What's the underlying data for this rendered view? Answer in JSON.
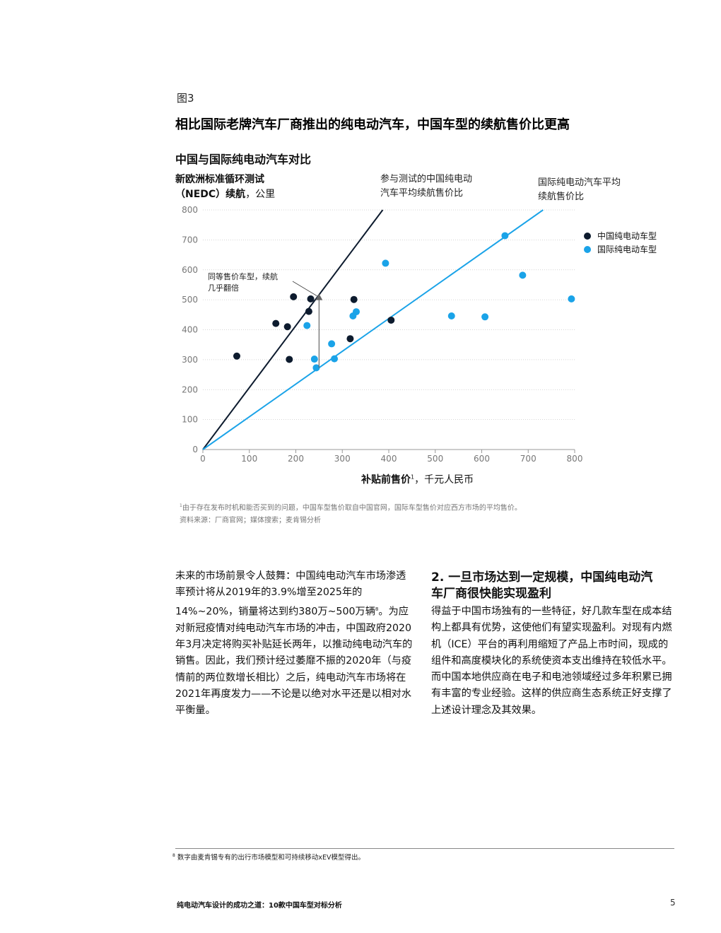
{
  "figure": {
    "label": "图3",
    "title": "相比国际老牌汽车厂商推出的纯电动汽车，中国车型的续航售价比更高"
  },
  "chart_data": {
    "type": "scatter",
    "title": "中国与国际纯电动汽车对比",
    "ylabel_bold": "新欧洲标准循环测试",
    "ylabel_rest_bold": "（NEDC）续航",
    "ylabel_rest_plain": "，公里",
    "xlabel_bold": "补贴前售价",
    "xlabel_sup": "1",
    "xlabel_plain": "，千元人民币",
    "xlim": [
      0,
      800
    ],
    "ylim": [
      0,
      800
    ],
    "xticks": [
      "0",
      "100",
      "200",
      "300",
      "400",
      "500",
      "600",
      "700",
      "800"
    ],
    "yticks": [
      "0",
      "100",
      "200",
      "300",
      "400",
      "500",
      "600",
      "700",
      "800"
    ],
    "x_tick_values": [
      0,
      100,
      200,
      300,
      400,
      500,
      600,
      700,
      800
    ],
    "y_tick_values": [
      0,
      100,
      200,
      300,
      400,
      500,
      600,
      700,
      800
    ],
    "legend_position": "right",
    "series": [
      {
        "name": "中国纯电动车型",
        "color": "#0d1b2e",
        "points": [
          {
            "x": 73,
            "y": 312
          },
          {
            "x": 157,
            "y": 421
          },
          {
            "x": 182,
            "y": 410
          },
          {
            "x": 195,
            "y": 510
          },
          {
            "x": 186,
            "y": 301
          },
          {
            "x": 228,
            "y": 461
          },
          {
            "x": 232,
            "y": 503
          },
          {
            "x": 325,
            "y": 501
          },
          {
            "x": 317,
            "y": 370
          },
          {
            "x": 405,
            "y": 432
          }
        ]
      },
      {
        "name": "国际纯电动车型",
        "color": "#1aa3e8",
        "points": [
          {
            "x": 224,
            "y": 414
          },
          {
            "x": 240,
            "y": 302
          },
          {
            "x": 244,
            "y": 273
          },
          {
            "x": 277,
            "y": 353
          },
          {
            "x": 283,
            "y": 303
          },
          {
            "x": 323,
            "y": 446
          },
          {
            "x": 330,
            "y": 460
          },
          {
            "x": 393,
            "y": 622
          },
          {
            "x": 535,
            "y": 446
          },
          {
            "x": 607,
            "y": 443
          },
          {
            "x": 650,
            "y": 714
          },
          {
            "x": 688,
            "y": 582
          },
          {
            "x": 793,
            "y": 503
          }
        ]
      }
    ],
    "trend_lines": [
      {
        "color": "#0d1b2e",
        "x1": 0,
        "y1": 0,
        "x2": 387,
        "y2": 800
      },
      {
        "color": "#1aa3e8",
        "x1": 0,
        "y1": 0,
        "x2": 732,
        "y2": 800
      }
    ],
    "arrow": {
      "x": 250,
      "y_from": 273,
      "y_to": 520
    },
    "annotations": {
      "cn_line": [
        "参与测试的中国纯电动",
        "汽车平均续航售价比"
      ],
      "intl_line": [
        "国际纯电动汽车平均",
        "续航售价比"
      ],
      "double": [
        "同等售价车型，续航",
        "几乎翻倍"
      ]
    }
  },
  "chart_note": {
    "footnote_sup": "1",
    "footnote": "由于存在发布时机和能否买到的问题，中国车型售价取自中国官网，国际车型售价对应西方市场的平均售价。",
    "source": "资料来源：厂商官网；媒体搜索；麦肯锡分析"
  },
  "body": {
    "left_part1": "未来的市场前景令人鼓舞：中国纯电动汽车市场渗透率预计将从2019年的3.9%增至2025年的14%~20%，销量将达到约380万~500万辆",
    "left_sup": "8",
    "left_part2": "。为应对新冠疫情对纯电动汽车市场的冲击，中国政府2020年3月决定将购买补贴延长两年，以推动纯电动汽车的销售。因此，我们预计经过萎靡不振的2020年（与疫情前的两位数增长相比）之后，纯电动汽车市场将在2021年再度发力——不论是以绝对水平还是以相对水平衡量。",
    "section_heading": "2. 一旦市场达到一定规模，中国纯电动汽车厂商很快能实现盈利",
    "right_text": "得益于中国市场独有的一些特征，好几款车型在成本结构上都具有优势，这使他们有望实现盈利。对现有内燃机（ICE）平台的再利用缩短了产品上市时间，现成的组件和高度模块化的系统使资本支出维持在较低水平。而中国本地供应商在电子和电池领域经过多年积累已拥有丰富的专业经验。这样的供应商生态系统正好支撑了上述设计理念及其效果。"
  },
  "footnote": {
    "sup": "8",
    "text": "数字由麦肯锡专有的出行市场模型和可持续移动xEV模型得出。"
  },
  "footer": {
    "title": "纯电动汽车设计的成功之道：10款中国车型对标分析",
    "page": "5"
  }
}
